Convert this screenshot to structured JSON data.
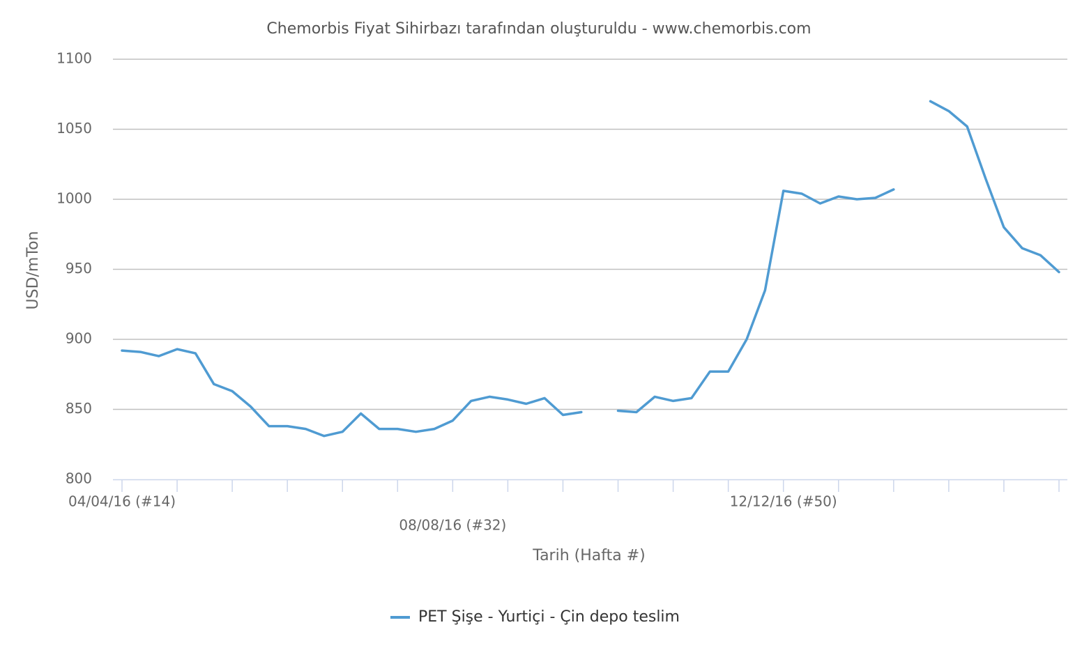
{
  "chart_data": {
    "type": "line",
    "title": "Chemorbis Fiyat Sihirbazı tarafından oluşturuldu - www.chemorbis.com",
    "x_label": "Tarih (Hafta #)",
    "y_label": "USD/mTon",
    "categories": [
      "04/04/16 (#14)",
      null,
      null,
      null,
      null,
      null,
      null,
      null,
      null,
      null,
      null,
      null,
      null,
      null,
      null,
      null,
      null,
      null,
      "08/08/16 (#32)",
      null,
      null,
      null,
      null,
      null,
      null,
      null,
      null,
      null,
      null,
      null,
      null,
      null,
      null,
      null,
      null,
      null,
      "12/12/16 (#50)",
      null,
      null,
      null,
      null,
      null,
      null,
      null,
      null,
      null,
      null,
      null,
      null,
      null,
      null,
      null
    ],
    "series": [
      {
        "name": "PET Şişe - Yurtiçi - Çin depo teslim",
        "color": "#4f9bd2",
        "values": [
          892,
          891,
          888,
          893,
          890,
          868,
          863,
          852,
          838,
          838,
          836,
          831,
          834,
          847,
          836,
          836,
          834,
          836,
          842,
          856,
          859,
          857,
          854,
          858,
          846,
          848,
          null,
          849,
          848,
          859,
          856,
          858,
          877,
          877,
          900,
          935,
          1006,
          1004,
          997,
          1002,
          1000,
          1001,
          1007,
          null,
          1070,
          1063,
          1052,
          1015,
          980,
          965,
          960,
          948
        ]
      }
    ],
    "ylim": [
      800,
      1100
    ],
    "yticks": [
      800,
      850,
      900,
      950,
      1000,
      1050,
      1100
    ],
    "grid": true,
    "legend": "bottom"
  }
}
